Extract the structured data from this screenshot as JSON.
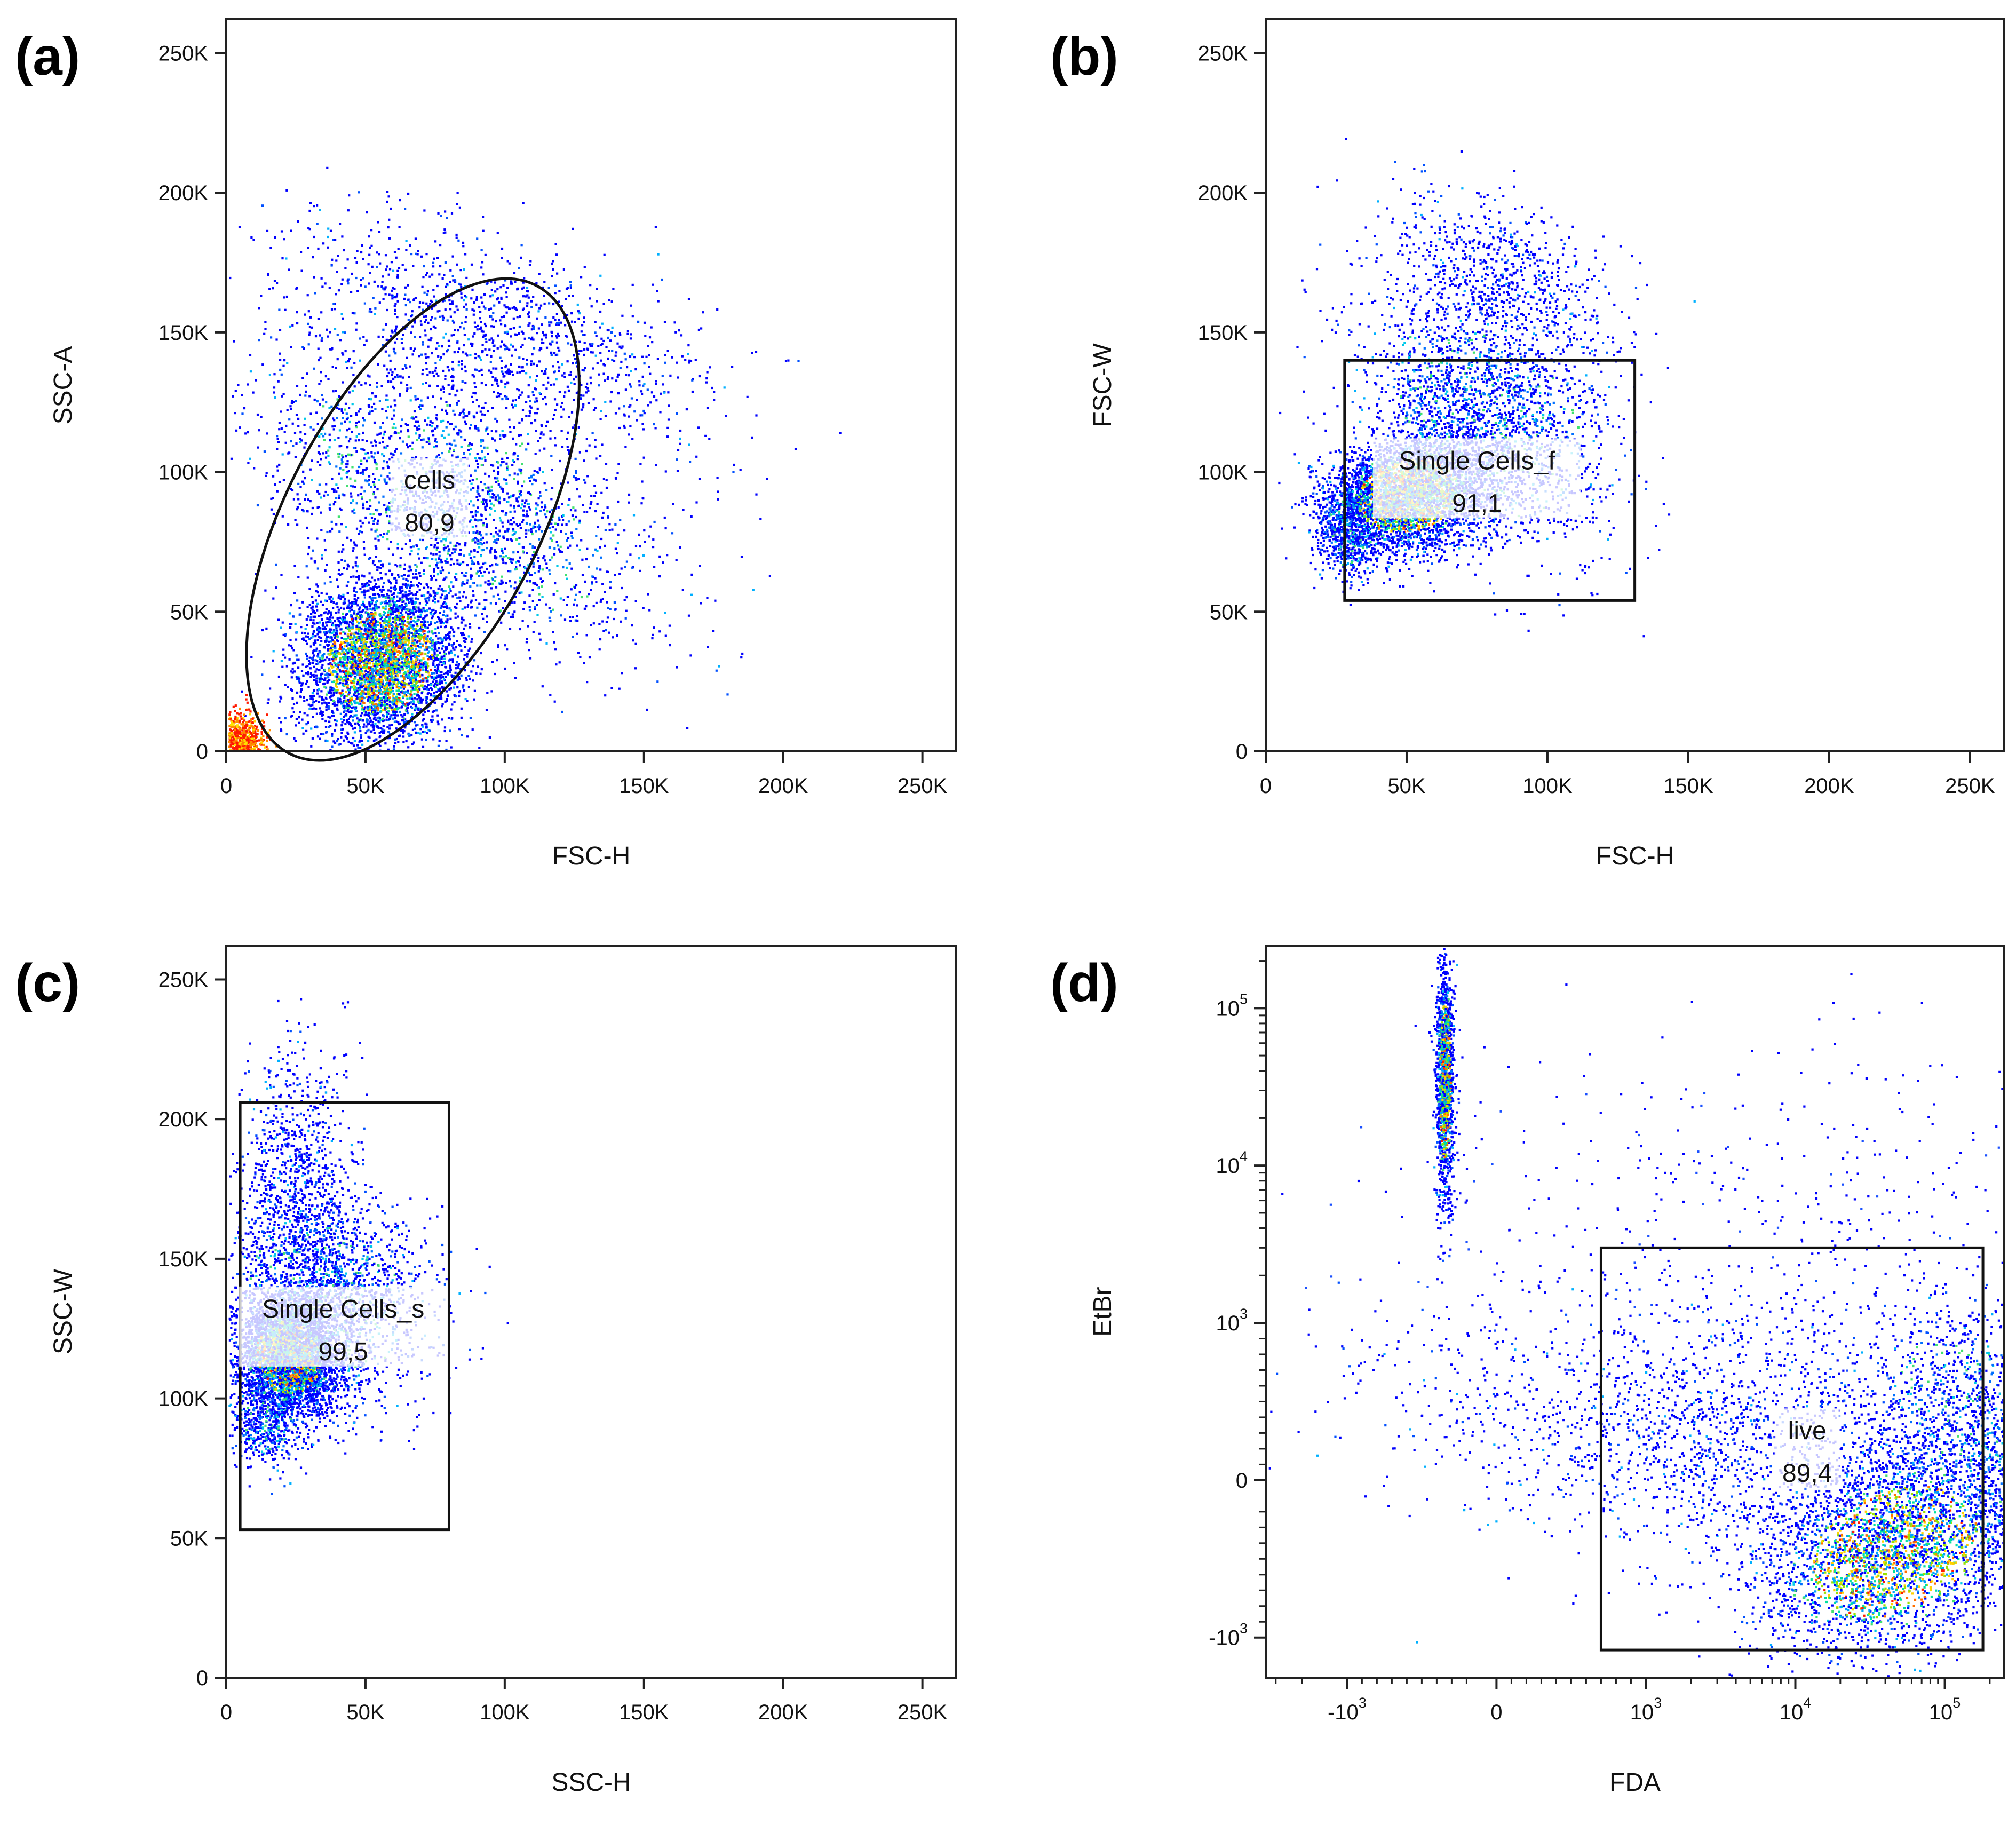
{
  "chart_data": [
    {
      "id": "a",
      "panel_letter": "(a)",
      "type": "scatter",
      "scale": "linear",
      "xlabel": "FSC-H",
      "ylabel": "SSC-A",
      "xlim": [
        0,
        262144
      ],
      "ylim": [
        0,
        262144
      ],
      "xticks": [
        {
          "value": 0,
          "label": "0"
        },
        {
          "value": 50000,
          "label": "50K"
        },
        {
          "value": 100000,
          "label": "100K"
        },
        {
          "value": 150000,
          "label": "150K"
        },
        {
          "value": 200000,
          "label": "200K"
        },
        {
          "value": 250000,
          "label": "250K"
        }
      ],
      "yticks": [
        {
          "value": 0,
          "label": "0"
        },
        {
          "value": 50000,
          "label": "50K"
        },
        {
          "value": 100000,
          "label": "100K"
        },
        {
          "value": 150000,
          "label": "150K"
        },
        {
          "value": 200000,
          "label": "200K"
        },
        {
          "value": 250000,
          "label": "250K"
        }
      ],
      "gate": {
        "shape": "ellipse",
        "name": "cells",
        "percent": "80,9",
        "center": [
          67000,
          83000
        ],
        "semi_major": 95000,
        "semi_minor": 45000,
        "angle_deg": 62
      },
      "gate_label_at": [
        73000,
        94000
      ],
      "clusters": [
        {
          "center": [
            55000,
            33000
          ],
          "spread": [
            15000,
            14000
          ],
          "angle_deg": 45,
          "n": 4200,
          "density": "high"
        },
        {
          "center": [
            80000,
            90000
          ],
          "spread": [
            20000,
            38000
          ],
          "angle_deg": 60,
          "n": 2400,
          "density": "mid"
        },
        {
          "center": [
            95000,
            150000
          ],
          "spread": [
            16000,
            40000
          ],
          "angle_deg": 70,
          "n": 1300,
          "density": "low"
        },
        {
          "center": [
            4000,
            4000
          ],
          "spread": [
            4500,
            4500
          ],
          "angle_deg": 0,
          "n": 800,
          "density": "peak"
        }
      ]
    },
    {
      "id": "b",
      "panel_letter": "(b)",
      "type": "scatter",
      "scale": "linear",
      "xlabel": "FSC-H",
      "ylabel": "FSC-W",
      "xlim": [
        0,
        262144
      ],
      "ylim": [
        0,
        262144
      ],
      "xticks": [
        {
          "value": 0,
          "label": "0"
        },
        {
          "value": 50000,
          "label": "50K"
        },
        {
          "value": 100000,
          "label": "100K"
        },
        {
          "value": 150000,
          "label": "150K"
        },
        {
          "value": 200000,
          "label": "200K"
        },
        {
          "value": 250000,
          "label": "250K"
        }
      ],
      "yticks": [
        {
          "value": 0,
          "label": "0"
        },
        {
          "value": 50000,
          "label": "50K"
        },
        {
          "value": 100000,
          "label": "100K"
        },
        {
          "value": 150000,
          "label": "150K"
        },
        {
          "value": 200000,
          "label": "200K"
        },
        {
          "value": 250000,
          "label": "250K"
        }
      ],
      "gate": {
        "shape": "rect",
        "name": "Single Cells_f",
        "percent": "91,1",
        "x": [
          28000,
          131000
        ],
        "y": [
          54000,
          140000
        ]
      },
      "gate_label_at": [
        75000,
        101000
      ],
      "clusters": [
        {
          "center": [
            50000,
            92000
          ],
          "spread": [
            14000,
            10000
          ],
          "angle_deg": 15,
          "n": 3500,
          "density": "high"
        },
        {
          "center": [
            78000,
            120000
          ],
          "spread": [
            18000,
            25000
          ],
          "angle_deg": 40,
          "n": 2300,
          "density": "mid"
        },
        {
          "center": [
            85000,
            170000
          ],
          "spread": [
            12000,
            25000
          ],
          "angle_deg": 60,
          "n": 700,
          "density": "low"
        },
        {
          "center": [
            30000,
            80000
          ],
          "spread": [
            6000,
            9000
          ],
          "angle_deg": 0,
          "n": 700,
          "density": "mid"
        }
      ]
    },
    {
      "id": "c",
      "panel_letter": "(c)",
      "type": "scatter",
      "scale": "linear",
      "xlabel": "SSC-H",
      "ylabel": "SSC-W",
      "xlim": [
        0,
        262144
      ],
      "ylim": [
        0,
        262144
      ],
      "xticks": [
        {
          "value": 0,
          "label": "0"
        },
        {
          "value": 50000,
          "label": "50K"
        },
        {
          "value": 100000,
          "label": "100K"
        },
        {
          "value": 150000,
          "label": "150K"
        },
        {
          "value": 200000,
          "label": "200K"
        },
        {
          "value": 250000,
          "label": "250K"
        }
      ],
      "yticks": [
        {
          "value": 0,
          "label": "0"
        },
        {
          "value": 50000,
          "label": "50K"
        },
        {
          "value": 100000,
          "label": "100K"
        },
        {
          "value": 150000,
          "label": "150K"
        },
        {
          "value": 200000,
          "label": "200K"
        },
        {
          "value": 250000,
          "label": "250K"
        }
      ],
      "gate": {
        "shape": "rect",
        "name": "Single Cells_s",
        "percent": "99,5",
        "x": [
          5000,
          80000
        ],
        "y": [
          53000,
          206000
        ]
      },
      "gate_label_at": [
        42000,
        129000
      ],
      "clusters": [
        {
          "center": [
            22000,
            115000
          ],
          "spread": [
            9000,
            10000
          ],
          "angle_deg": 20,
          "n": 3500,
          "density": "high"
        },
        {
          "center": [
            35000,
            135000
          ],
          "spread": [
            17000,
            20000
          ],
          "angle_deg": 20,
          "n": 2200,
          "density": "mid"
        },
        {
          "center": [
            25000,
            180000
          ],
          "spread": [
            10000,
            22000
          ],
          "angle_deg": 0,
          "n": 800,
          "density": "low"
        },
        {
          "center": [
            15000,
            92000
          ],
          "spread": [
            7000,
            8000
          ],
          "angle_deg": 0,
          "n": 500,
          "density": "mid"
        }
      ]
    },
    {
      "id": "d",
      "panel_letter": "(d)",
      "type": "scatter",
      "scale": "biexponential",
      "xlabel": "FDA",
      "ylabel": "EtBr",
      "xlim": [
        -3500,
        250000
      ],
      "ylim": [
        -1800,
        250000
      ],
      "xticks": [
        {
          "value": -1000,
          "base": "-10",
          "exp": "3"
        },
        {
          "value": 0,
          "label": "0"
        },
        {
          "value": 1000,
          "base": "10",
          "exp": "3"
        },
        {
          "value": 10000,
          "base": "10",
          "exp": "4"
        },
        {
          "value": 100000,
          "base": "10",
          "exp": "5"
        }
      ],
      "yticks": [
        {
          "value": -1000,
          "base": "-10",
          "exp": "3"
        },
        {
          "value": 0,
          "label": "0"
        },
        {
          "value": 1000,
          "base": "10",
          "exp": "3"
        },
        {
          "value": 10000,
          "base": "10",
          "exp": "4"
        },
        {
          "value": 100000,
          "base": "10",
          "exp": "5"
        }
      ],
      "gate": {
        "shape": "rect",
        "name": "live",
        "percent": "89,4",
        "x": [
          700,
          180000
        ],
        "y": [
          -1200,
          3000
        ]
      },
      "gate_label_at": [
        12000,
        260
      ],
      "clusters_t": [
        {
          "center": [
            -0.35,
            2.55
          ],
          "spread": [
            0.03,
            0.38
          ],
          "angle_deg": 0,
          "n": 1400,
          "density": "high"
        },
        {
          "center": [
            2.65,
            -0.45
          ],
          "spread": [
            0.45,
            0.3
          ],
          "angle_deg": 22,
          "n": 3000,
          "density": "high"
        },
        {
          "center": [
            3.4,
            0.25
          ],
          "spread": [
            0.35,
            0.55
          ],
          "angle_deg": 55,
          "n": 1900,
          "density": "mid"
        },
        {
          "center": [
            1.6,
            0.25
          ],
          "spread": [
            1.1,
            0.4
          ],
          "angle_deg": -8,
          "n": 2000,
          "density": "low"
        },
        {
          "center": [
            1.9,
            1.4
          ],
          "spread": [
            1.5,
            0.75
          ],
          "angle_deg": 0,
          "n": 650,
          "density": "sparse"
        }
      ]
    }
  ]
}
